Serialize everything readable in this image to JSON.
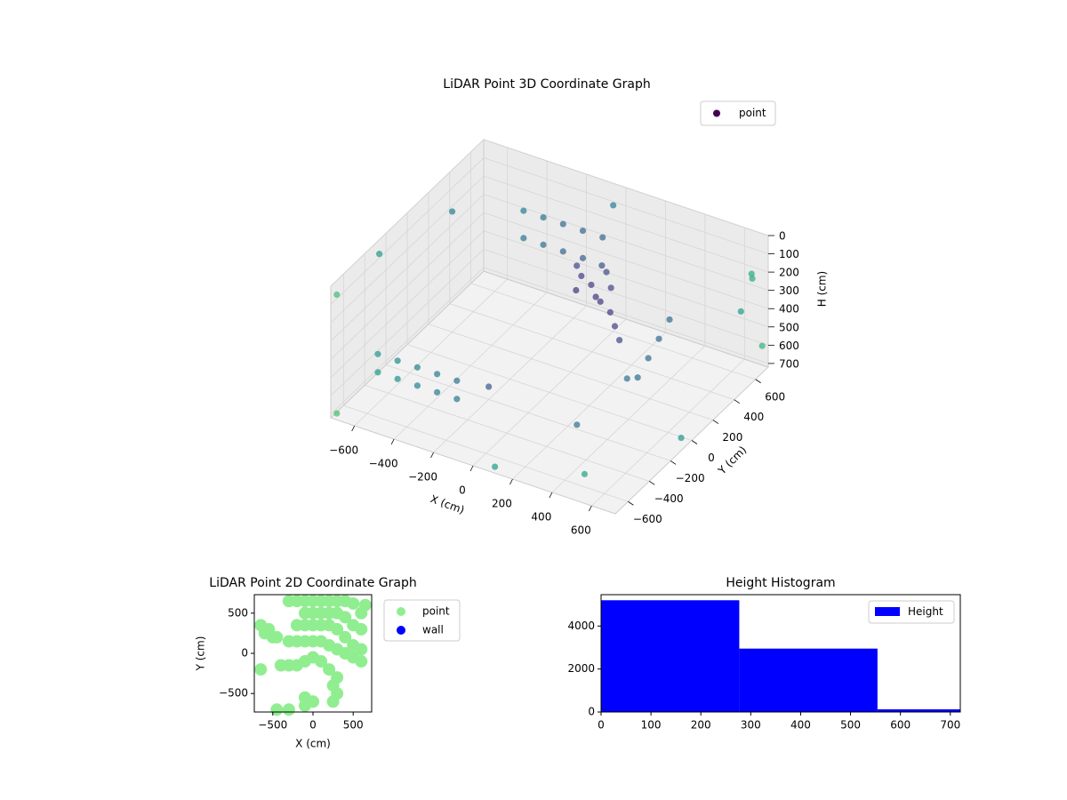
{
  "chart_data": [
    {
      "type": "scatter3d",
      "title": "LiDAR Point 3D Coordinate Graph",
      "xlabel": "X (cm)",
      "ylabel": "Y (cm)",
      "zlabel": "H (cm)",
      "xlim": [
        -720,
        720
      ],
      "ylim": [
        -720,
        720
      ],
      "zlim": [
        720,
        0
      ],
      "xticks": [
        {
          "value": -600,
          "label": "−600"
        },
        {
          "value": -400,
          "label": "−400"
        },
        {
          "value": -200,
          "label": "−200"
        },
        0,
        200,
        400,
        600
      ],
      "yticks": [
        {
          "value": -600,
          "label": "−600"
        },
        {
          "value": -400,
          "label": "−400"
        },
        {
          "value": -200,
          "label": "−200"
        },
        0,
        200,
        400,
        600
      ],
      "zticks": [
        0,
        100,
        200,
        300,
        400,
        500,
        600,
        700
      ],
      "legend": "upper right",
      "grid": true,
      "series": [
        {
          "name": "point",
          "color": "#440154",
          "cmap": "viridis",
          "x": [
            0,
            50,
            100,
            150,
            -50,
            100,
            200,
            250,
            300,
            50,
            0,
            150,
            -600,
            -600,
            -500,
            -500,
            -400,
            -400,
            -300,
            -300,
            -200,
            -200,
            -400,
            -400,
            -300,
            -300,
            -200,
            -200,
            -100,
            -100,
            0,
            500,
            500,
            500,
            500,
            500,
            -700,
            -700,
            -600,
            0,
            700,
            650,
            700,
            -700,
            100,
            500,
            700,
            720,
            -200,
            300
          ],
          "y": [
            300,
            300,
            250,
            300,
            350,
            350,
            200,
            150,
            100,
            400,
            250,
            200,
            -500,
            -500,
            -500,
            -500,
            -500,
            -500,
            -500,
            -500,
            -500,
            -500,
            500,
            500,
            500,
            500,
            500,
            500,
            500,
            500,
            500,
            -200,
            -100,
            0,
            100,
            200,
            -700,
            -300,
            200,
            600,
            600,
            700,
            500,
            -700,
            -700,
            -600,
            700,
            -100,
            -200,
            -300
          ],
          "values": [
            250,
            280,
            300,
            260,
            240,
            220,
            320,
            350,
            380,
            230,
            300,
            280,
            450,
            550,
            450,
            550,
            450,
            550,
            450,
            550,
            450,
            550,
            150,
            300,
            150,
            300,
            150,
            300,
            150,
            300,
            150,
            350,
            400,
            350,
            300,
            250,
            50,
            50,
            60,
            30,
            150,
            250,
            300,
            700,
            700,
            650,
            600,
            650,
            650,
            620
          ]
        }
      ]
    },
    {
      "type": "scatter",
      "title": "LiDAR Point 2D Coordinate Graph",
      "xlabel": "X (cm)",
      "ylabel": "Y (cm)",
      "xlim": [
        -730,
        730
      ],
      "ylim": [
        -730,
        730
      ],
      "xticks": [
        {
          "value": -500,
          "label": "−500"
        },
        0,
        500
      ],
      "yticks": [
        {
          "value": -500,
          "label": "−500"
        },
        0,
        500
      ],
      "legend": "outside right",
      "series": [
        {
          "name": "point",
          "color": "#90ee90",
          "x": [
            -650,
            -600,
            -550,
            -500,
            -450,
            -650,
            -300,
            -200,
            -100,
            0,
            100,
            200,
            300,
            400,
            500,
            600,
            650,
            -100,
            0,
            100,
            200,
            300,
            400,
            500,
            600,
            -200,
            -100,
            0,
            100,
            200,
            300,
            400,
            500,
            600,
            -300,
            -200,
            -100,
            0,
            100,
            200,
            300,
            400,
            500,
            600,
            -400,
            -300,
            -200,
            -100,
            0,
            100,
            200,
            300,
            250,
            300,
            -450,
            -300,
            -100,
            0,
            -100,
            250
          ],
          "values": [
            350,
            250,
            300,
            200,
            200,
            -200,
            650,
            650,
            650,
            650,
            650,
            650,
            650,
            650,
            620,
            500,
            600,
            500,
            500,
            500,
            500,
            500,
            450,
            350,
            300,
            350,
            350,
            350,
            350,
            350,
            300,
            200,
            100,
            50,
            150,
            150,
            150,
            150,
            150,
            100,
            50,
            0,
            -50,
            -100,
            -150,
            -150,
            -150,
            -100,
            -50,
            -100,
            -200,
            -300,
            -400,
            -500,
            -700,
            -700,
            -650,
            -600,
            -550,
            -600
          ]
        },
        {
          "name": "wall",
          "color": "#0000ff",
          "x": [],
          "values": []
        }
      ]
    },
    {
      "type": "histogram",
      "title": "Height Histogram",
      "bins": [
        0,
        277,
        554,
        831
      ],
      "values": [
        5200,
        2950,
        125
      ],
      "color": "#0000ff",
      "series_name": "Height",
      "xlim": [
        0,
        720
      ],
      "ylim": [
        0,
        5460
      ],
      "xticks": [
        0,
        100,
        200,
        300,
        400,
        500,
        600,
        700
      ],
      "yticks": [
        0,
        2000,
        4000
      ],
      "legend": "upper right"
    }
  ]
}
